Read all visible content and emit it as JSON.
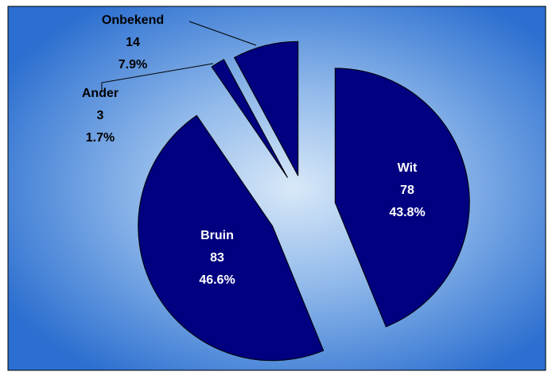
{
  "chart_data": {
    "type": "pie",
    "categories": [
      "Wit",
      "Bruin",
      "Ander",
      "Onbekend"
    ],
    "values": [
      78,
      83,
      3,
      14
    ],
    "percent_labels": [
      "43.8%",
      "46.6%",
      "1.7%",
      "7.9%"
    ],
    "color": "#000080"
  }
}
